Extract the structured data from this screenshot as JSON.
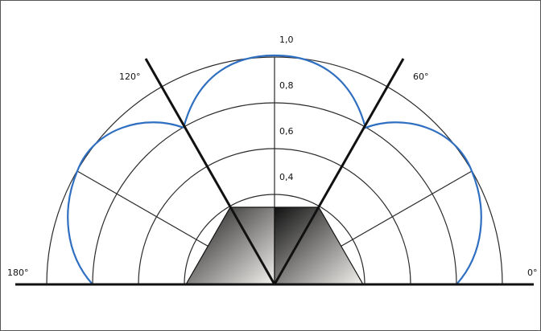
{
  "labels": {
    "angle_0": "0°",
    "angle_60": "60°",
    "angle_120": "120°",
    "angle_180": "180°",
    "r_1_0": "1,0",
    "r_0_8": "0,8",
    "r_0_6": "0,6",
    "r_0_4": "0,4"
  },
  "radial_rings": [
    0.4,
    0.6,
    0.8,
    1.0
  ],
  "spokes_deg": [
    30,
    90,
    150
  ],
  "beam_lines_deg": [
    60,
    120
  ],
  "colors": {
    "curve": "#2f6fc1",
    "line": "#111111",
    "grid": "#2a2a2a",
    "gradient_dark": "#111111",
    "gradient_light": "#f4f2ef"
  }
}
